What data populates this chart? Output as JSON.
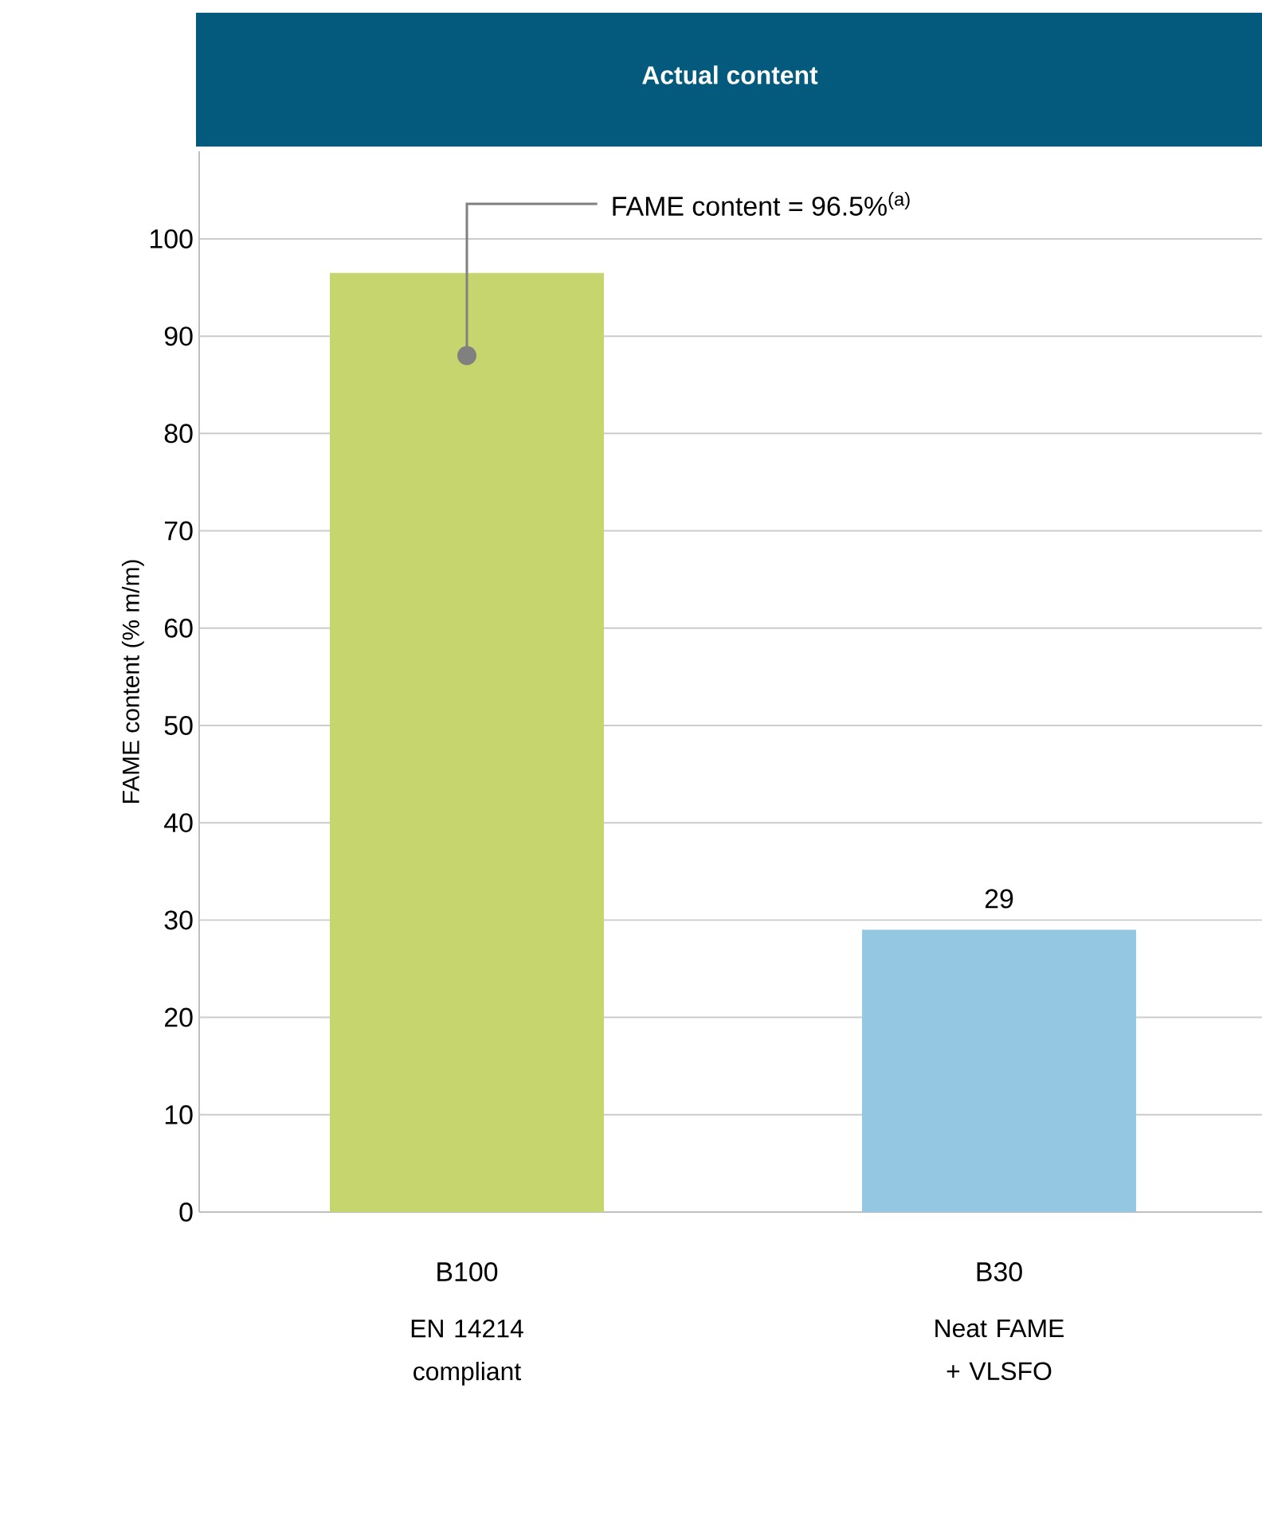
{
  "chart_data": {
    "type": "bar",
    "title": "Actual content",
    "ylabel": "FAME content (% m/m)",
    "categories": [
      "B100",
      "B30"
    ],
    "values": [
      96.5,
      29
    ],
    "colors": [
      "#c7d56e",
      "#93c7e2"
    ],
    "value_labels": [
      null,
      "29"
    ],
    "ylim": [
      0,
      109
    ],
    "yticks": [
      0,
      10,
      20,
      30,
      40,
      50,
      60,
      70,
      80,
      90,
      100
    ],
    "grid": "y",
    "annotations": [
      {
        "text": "FAME content = 96.5%$^{(a)}$",
        "x": "B100",
        "y": 88
      },
      "EN 14214 compliant",
      "Neat FAME + VLSFO"
    ]
  }
}
